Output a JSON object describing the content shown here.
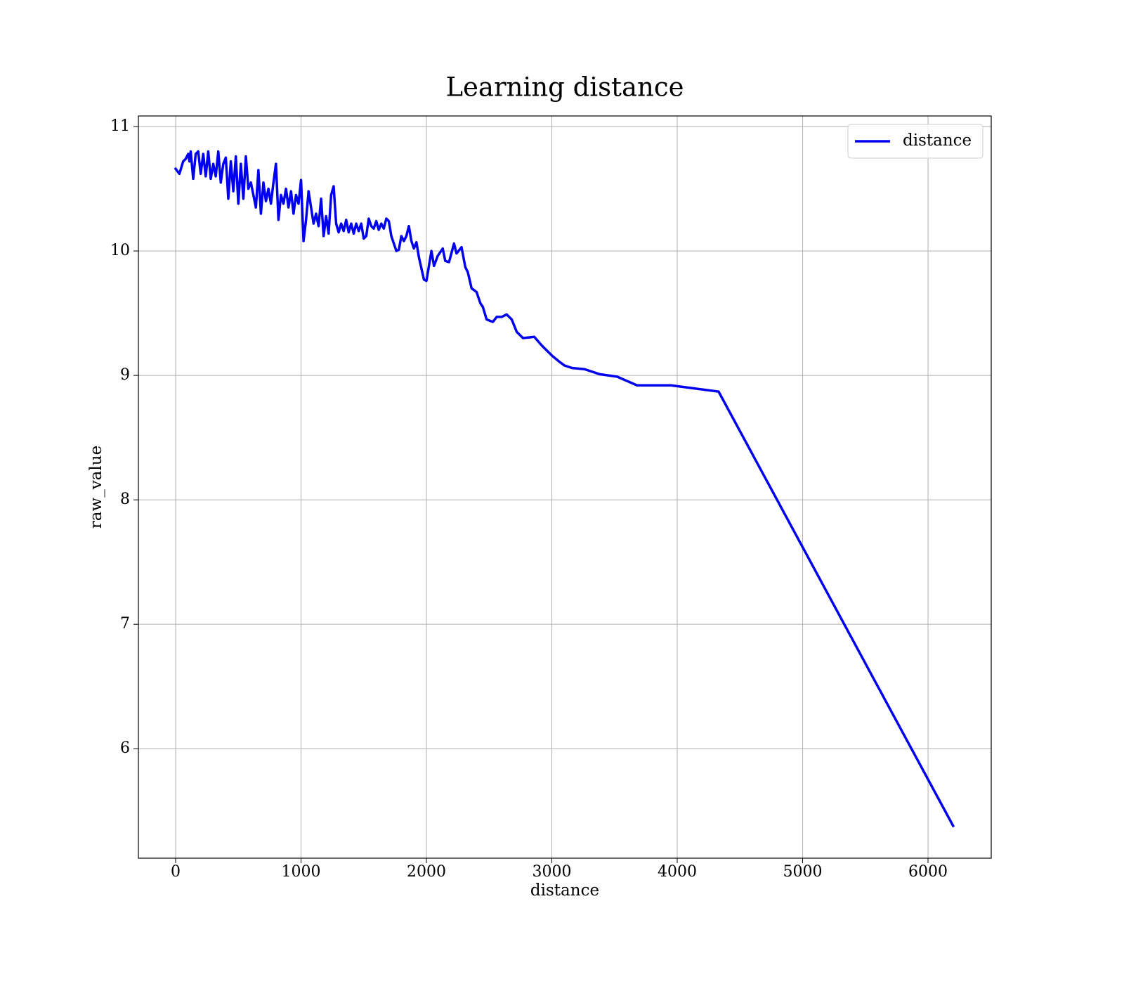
{
  "chart_data": {
    "type": "line",
    "title": "Learning distance",
    "x_label": "distance",
    "y_label": "raw_value",
    "x": [
      0,
      30,
      60,
      80,
      100,
      110,
      120,
      140,
      160,
      180,
      200,
      220,
      240,
      260,
      280,
      300,
      320,
      340,
      360,
      380,
      400,
      420,
      440,
      460,
      480,
      500,
      520,
      540,
      560,
      580,
      600,
      620,
      640,
      660,
      680,
      700,
      720,
      740,
      760,
      780,
      800,
      820,
      840,
      860,
      880,
      900,
      920,
      940,
      960,
      980,
      1000,
      1020,
      1040,
      1060,
      1080,
      1100,
      1120,
      1140,
      1160,
      1180,
      1200,
      1220,
      1240,
      1260,
      1280,
      1300,
      1320,
      1340,
      1360,
      1380,
      1400,
      1420,
      1440,
      1460,
      1480,
      1500,
      1520,
      1540,
      1560,
      1580,
      1600,
      1620,
      1640,
      1660,
      1680,
      1700,
      1720,
      1760,
      1780,
      1800,
      1820,
      1840,
      1860,
      1880,
      1900,
      1920,
      1940,
      1980,
      2000,
      2040,
      2060,
      2090,
      2130,
      2150,
      2180,
      2220,
      2240,
      2280,
      2310,
      2330,
      2360,
      2400,
      2430,
      2450,
      2480,
      2530,
      2560,
      2600,
      2640,
      2680,
      2720,
      2770,
      2860,
      2920,
      3000,
      3060,
      3100,
      3160,
      3260,
      3380,
      3520,
      3680,
      3950,
      4330,
      6200
    ],
    "series": [
      {
        "name": "distance",
        "color": "#0000ee",
        "values": [
          10.66,
          10.62,
          10.72,
          10.74,
          10.78,
          10.72,
          10.8,
          10.58,
          10.78,
          10.8,
          10.62,
          10.78,
          10.6,
          10.8,
          10.58,
          10.7,
          10.6,
          10.8,
          10.55,
          10.7,
          10.75,
          10.42,
          10.72,
          10.48,
          10.76,
          10.38,
          10.7,
          10.42,
          10.76,
          10.5,
          10.55,
          10.45,
          10.35,
          10.65,
          10.3,
          10.55,
          10.4,
          10.5,
          10.38,
          10.55,
          10.7,
          10.25,
          10.45,
          10.38,
          10.5,
          10.35,
          10.48,
          10.3,
          10.45,
          10.38,
          10.57,
          10.08,
          10.25,
          10.48,
          10.35,
          10.22,
          10.3,
          10.2,
          10.42,
          10.12,
          10.28,
          10.14,
          10.45,
          10.52,
          10.22,
          10.15,
          10.22,
          10.16,
          10.25,
          10.15,
          10.22,
          10.14,
          10.22,
          10.16,
          10.22,
          10.1,
          10.12,
          10.26,
          10.2,
          10.18,
          10.24,
          10.17,
          10.22,
          10.18,
          10.26,
          10.24,
          10.12,
          10.0,
          10.01,
          10.12,
          10.08,
          10.12,
          10.2,
          10.08,
          10.02,
          10.07,
          9.95,
          9.77,
          9.76,
          10.0,
          9.88,
          9.96,
          10.02,
          9.92,
          9.91,
          10.06,
          9.98,
          10.03,
          9.87,
          9.83,
          9.7,
          9.67,
          9.58,
          9.55,
          9.45,
          9.43,
          9.47,
          9.47,
          9.49,
          9.45,
          9.35,
          9.3,
          9.31,
          9.24,
          9.16,
          9.11,
          9.08,
          9.06,
          9.05,
          9.01,
          8.99,
          8.92,
          8.92,
          8.87,
          5.38
        ]
      }
    ],
    "xlim": [
      -297,
      6504
    ],
    "ylim": [
      5.12,
      11.085
    ],
    "xticks": [
      0,
      1000,
      2000,
      3000,
      4000,
      5000,
      6000
    ],
    "yticks": [
      6,
      7,
      8,
      9,
      10,
      11
    ],
    "grid": true,
    "legend": "upper right"
  }
}
